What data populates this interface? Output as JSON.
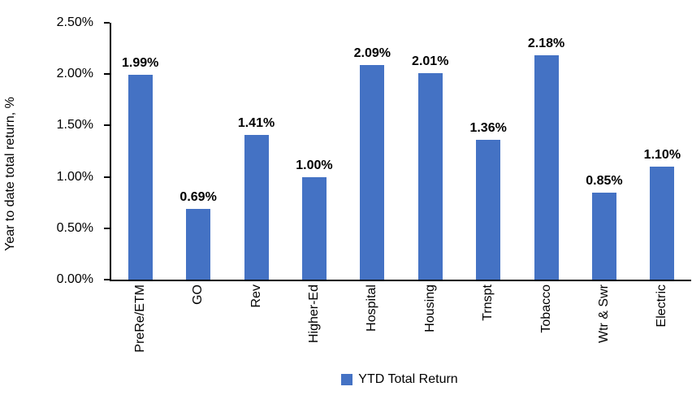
{
  "chart_data": {
    "type": "bar",
    "categories": [
      "PreRe/ETM",
      "GO",
      "Rev",
      "Higher-Ed",
      "Hospital",
      "Housing",
      "Trnspt",
      "Tobacco",
      "Wtr & Swr",
      "Electric"
    ],
    "values": [
      1.99,
      0.69,
      1.41,
      1.0,
      2.09,
      2.01,
      1.36,
      2.18,
      0.85,
      1.1
    ],
    "value_labels": [
      "1.99%",
      "0.69%",
      "1.41%",
      "1.00%",
      "2.09%",
      "2.01%",
      "1.36%",
      "2.18%",
      "0.85%",
      "1.10%"
    ],
    "title": "",
    "xlabel": "",
    "ylabel": "Year to date total return, %",
    "ylim": [
      0,
      2.5
    ],
    "yticks": [
      "0.00%",
      "0.50%",
      "1.00%",
      "1.50%",
      "2.00%",
      "2.50%"
    ],
    "grid": false,
    "legend_position": "bottom-center",
    "legend": [
      {
        "name": "YTD Total Return",
        "color": "#4472C4"
      }
    ],
    "bar_color": "#4472C4",
    "axis_color": "#000000",
    "text_color": "#000000"
  }
}
